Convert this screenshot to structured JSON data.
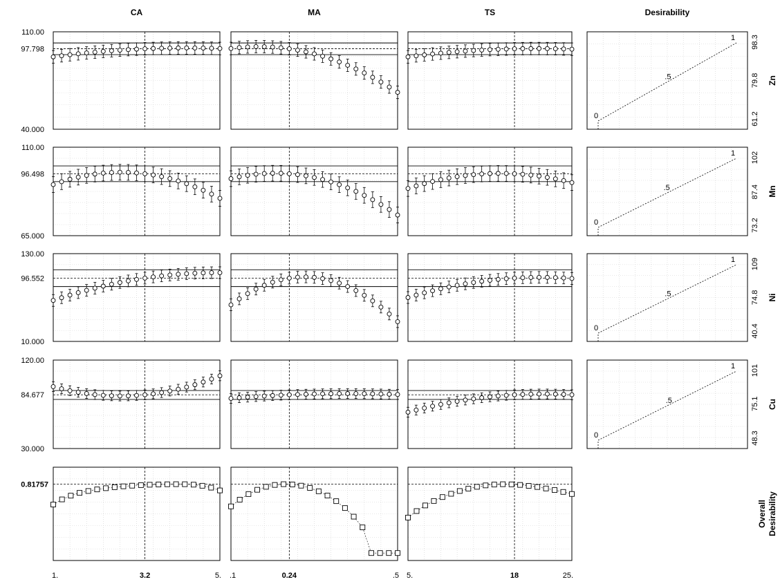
{
  "chart_data": {
    "type": "line",
    "title": "",
    "factors": [
      {
        "name": "CA",
        "min": 1,
        "max": 5,
        "current": 3.2,
        "tick_labels": [
          "1.",
          "3.2",
          "5."
        ]
      },
      {
        "name": "MA",
        "min": 0.1,
        "max": 0.5,
        "current": 0.24,
        "tick_labels": [
          ".1",
          "0.24",
          ".5"
        ]
      },
      {
        "name": "TS",
        "min": 5,
        "max": 25,
        "current": 18,
        "tick_labels": [
          "5.",
          "18",
          "25."
        ]
      }
    ],
    "desirability_header": "Desirability",
    "responses": [
      {
        "name": "Zn",
        "ylim": [
          40,
          110
        ],
        "current": 97.798,
        "tick_labels": {
          "top": "110.00",
          "current": "97.798",
          "bottom": "40.000"
        },
        "ci_lines": [
          102.0,
          93.6
        ],
        "profiles": [
          [
            92,
            98
          ],
          [
            98,
            66.5
          ],
          [
            92,
            97.5
          ]
        ],
        "err": 4.5,
        "desirability": {
          "low": 61.2,
          "mid": 79.8,
          "high": 98.3,
          "labels": [
            "61.2",
            "79.8",
            "98.3"
          ],
          "points": [
            "0",
            ".5",
            "1"
          ]
        }
      },
      {
        "name": "Mn",
        "ylim": [
          65,
          110
        ],
        "current": 96.498,
        "tick_labels": {
          "top": "110.00",
          "current": "96.498",
          "bottom": "65.000"
        },
        "ci_lines": [
          100.5,
          92.5
        ],
        "profiles": [
          [
            91,
            84
          ],
          [
            94,
            75.5
          ],
          [
            89,
            92
          ]
        ],
        "err": 4,
        "desirability": {
          "low": 73.2,
          "mid": 87.4,
          "high": 102,
          "labels": [
            "73.2",
            "87.4",
            "102"
          ],
          "points": [
            "0",
            ".5",
            "1"
          ]
        }
      },
      {
        "name": "Ni",
        "ylim": [
          10,
          130
        ],
        "current": 96.552,
        "tick_labels": {
          "top": "130.00",
          "current": "96.552",
          "bottom": "10.000"
        },
        "ci_lines": [
          108.0,
          85.0
        ],
        "profiles": [
          [
            66,
            104
          ],
          [
            60,
            37
          ],
          [
            70,
            96
          ]
        ],
        "err": 8,
        "desirability": {
          "low": 40.4,
          "mid": 74.8,
          "high": 109,
          "labels": [
            "40.4",
            "74.8",
            "109"
          ],
          "points": [
            "0",
            ".5",
            "1"
          ]
        }
      },
      {
        "name": "Cu",
        "ylim": [
          30,
          120
        ],
        "current": 84.677,
        "tick_labels": {
          "top": "120.00",
          "current": "84.677",
          "bottom": "30.000"
        },
        "ci_lines": [
          89.0,
          80.0
        ],
        "profiles": [
          [
            93,
            104
          ],
          [
            81,
            85
          ],
          [
            67,
            84.7
          ]
        ],
        "err": 5,
        "desirability": {
          "low": 48.3,
          "mid": 75.1,
          "high": 101,
          "labels": [
            "48.3",
            "75.1",
            "101"
          ],
          "points": [
            "0",
            ".5",
            "1"
          ]
        }
      }
    ],
    "overall": {
      "label_line1": "Overall",
      "label_line2": "Desirability",
      "current": 0.81757,
      "current_label": "0.81757",
      "curves": [
        [
          0.6,
          0.655,
          0.695,
          0.725,
          0.745,
          0.762,
          0.775,
          0.786,
          0.795,
          0.802,
          0.808,
          0.812,
          0.815,
          0.817,
          0.818,
          0.8176,
          0.813,
          0.801,
          0.781,
          0.751
        ],
        [
          0.58,
          0.652,
          0.712,
          0.758,
          0.79,
          0.81,
          0.818,
          0.815,
          0.802,
          0.778,
          0.742,
          0.696,
          0.636,
          0.562,
          0.47,
          0.355,
          0.08,
          0.08,
          0.08,
          0.08
        ],
        [
          0.46,
          0.53,
          0.59,
          0.638,
          0.68,
          0.715,
          0.745,
          0.77,
          0.79,
          0.805,
          0.814,
          0.8176,
          0.816,
          0.81,
          0.8,
          0.788,
          0.772,
          0.755,
          0.735,
          0.713
        ]
      ]
    }
  }
}
